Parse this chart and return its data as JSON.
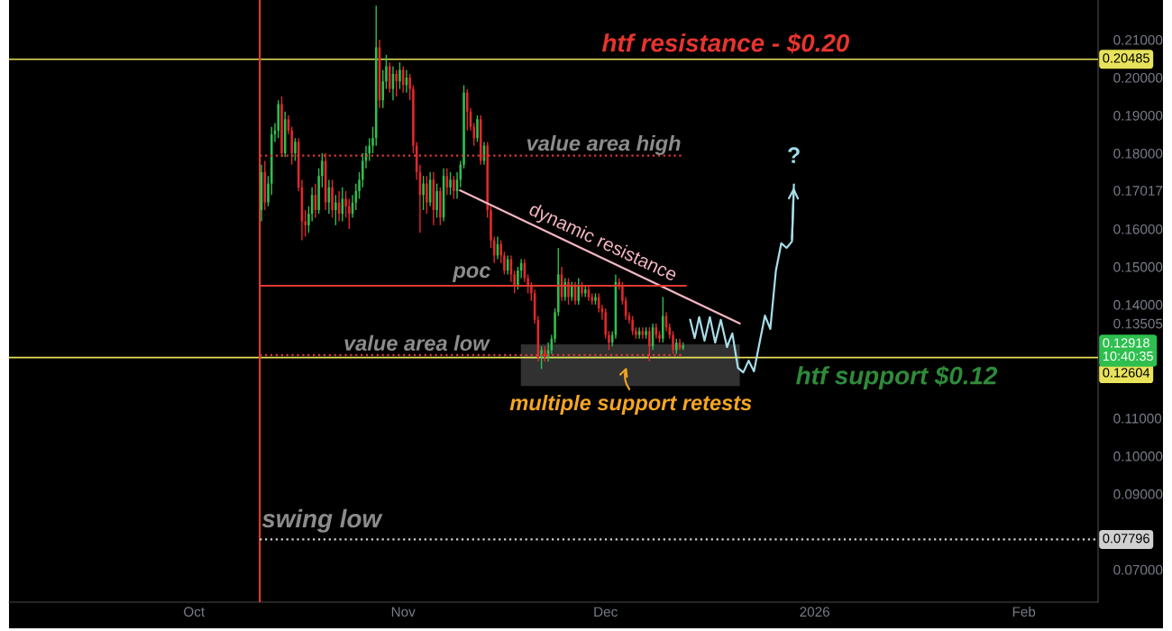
{
  "chart_data": {
    "type": "candlestick",
    "xlim": [
      "2025-09-03T14:00",
      "2026-02-12T00:00"
    ],
    "ylim": [
      0.0614,
      0.2205
    ],
    "xticks": [
      {
        "value": "2025-10-01",
        "label": "Oct"
      },
      {
        "value": "2025-11-01",
        "label": "Nov"
      },
      {
        "value": "2025-12-01",
        "label": "Dec"
      },
      {
        "value": "2026-01-01",
        "label": "2026"
      },
      {
        "value": "2026-02-01",
        "label": "Feb"
      }
    ],
    "yticks": [
      {
        "value": 0.07,
        "label": "0.07000"
      },
      {
        "value": 0.09,
        "label": "0.09000"
      },
      {
        "value": 0.1,
        "label": "0.10000"
      },
      {
        "value": 0.11,
        "label": "0.11000"
      },
      {
        "value": 0.13505,
        "label": "0.13505"
      },
      {
        "value": 0.14,
        "label": "0.14000"
      },
      {
        "value": 0.15,
        "label": "0.15000"
      },
      {
        "value": 0.16,
        "label": "0.16000"
      },
      {
        "value": 0.17017,
        "label": "0.17017"
      },
      {
        "value": 0.18,
        "label": "0.18000"
      },
      {
        "value": 0.19,
        "label": "0.19000"
      },
      {
        "value": 0.2,
        "label": "0.20000"
      },
      {
        "value": 0.21,
        "label": "0.21000"
      }
    ],
    "series": [
      {
        "colors": [
          "#2fbf4f",
          "#e3282c",
          "#2fbf4f",
          "#2fbf4f",
          "#2fbf4f",
          "#2fbf4f",
          "#e3282c",
          "#2fbf4f",
          "#e3282c",
          "#e3282c",
          "#2fbf4f",
          "#e3282c",
          "#e3282c",
          "#e3282c",
          "#2fbf4f",
          "#2fbf4f",
          "#e3282c",
          "#2fbf4f",
          "#2fbf4f",
          "#e3282c",
          "#2fbf4f",
          "#e3282c",
          "#2fbf4f",
          "#e3282c",
          "#2fbf4f",
          "#e3282c",
          "#e3282c",
          "#2fbf4f",
          "#2fbf4f",
          "#2fbf4f",
          "#2fbf4f",
          "#2fbf4f",
          "#2fbf4f",
          "#2fbf4f",
          "#2fbf4f",
          "#e3282c",
          "#2fbf4f",
          "#2fbf4f",
          "#e3282c",
          "#2fbf4f",
          "#e3282c",
          "#2fbf4f",
          "#e3282c",
          "#2fbf4f",
          "#e3282c",
          "#e3282c",
          "#e3282c",
          "#e3282c",
          "#2fbf4f",
          "#e3282c",
          "#2fbf4f",
          "#e3282c",
          "#2fbf4f",
          "#e3282c",
          "#2fbf4f",
          "#e3282c",
          "#2fbf4f",
          "#e3282c",
          "#2fbf4f",
          "#2fbf4f",
          "#2fbf4f",
          "#e3282c",
          "#e3282c",
          "#e3282c",
          "#2fbf4f",
          "#e3282c",
          "#2fbf4f",
          "#e3282c",
          "#e3282c",
          "#e3282c",
          "#2fbf4f",
          "#e3282c",
          "#e3282c",
          "#2fbf4f",
          "#e3282c",
          "#e3282c",
          "#2fbf4f",
          "#2fbf4f",
          "#e3282c",
          "#e3282c",
          "#e3282c",
          "#e3282c",
          "#e3282c",
          "#2fbf4f",
          "#e3282c",
          "#2fbf4f",
          "#2fbf4f",
          "#2fbf4f",
          "#2fbf4f",
          "#e3282c",
          "#2fbf4f",
          "#e3282c",
          "#2fbf4f",
          "#e3282c",
          "#2fbf4f",
          "#e3282c",
          "#2fbf4f",
          "#e3282c",
          "#e3282c",
          "#2fbf4f",
          "#e3282c",
          "#e3282c",
          "#e3282c",
          "#e3282c",
          "#2fbf4f",
          "#2fbf4f",
          "#e3282c",
          "#e3282c",
          "#e3282c",
          "#e3282c",
          "#e3282c",
          "#e3282c",
          "#2fbf4f",
          "#e3282c",
          "#2fbf4f",
          "#e3282c",
          "#2fbf4f",
          "#e3282c",
          "#e3282c",
          "#2fbf4f",
          "#e3282c",
          "#e3282c",
          "#e3282c",
          "#2fbf4f",
          "#e3282c",
          "#2fbf4f"
        ],
        "x": [
          "2025-10-11T00:00",
          "2025-10-11T12:00",
          "2025-10-12T00:00",
          "2025-10-12T12:00",
          "2025-10-13T00:00",
          "2025-10-13T12:00",
          "2025-10-14T00:00",
          "2025-10-14T12:00",
          "2025-10-15T00:00",
          "2025-10-15T12:00",
          "2025-10-16T00:00",
          "2025-10-16T12:00",
          "2025-10-17T00:00",
          "2025-10-17T12:00",
          "2025-10-18T00:00",
          "2025-10-18T12:00",
          "2025-10-19T00:00",
          "2025-10-19T12:00",
          "2025-10-20T00:00",
          "2025-10-20T12:00",
          "2025-10-21T00:00",
          "2025-10-21T12:00",
          "2025-10-22T00:00",
          "2025-10-22T12:00",
          "2025-10-23T00:00",
          "2025-10-23T12:00",
          "2025-10-24T00:00",
          "2025-10-24T12:00",
          "2025-10-25T00:00",
          "2025-10-25T12:00",
          "2025-10-26T00:00",
          "2025-10-26T12:00",
          "2025-10-27T00:00",
          "2025-10-27T12:00",
          "2025-10-28T00:00",
          "2025-10-28T12:00",
          "2025-10-29T00:00",
          "2025-10-29T12:00",
          "2025-10-30T00:00",
          "2025-10-30T12:00",
          "2025-10-31T00:00",
          "2025-10-31T12:00",
          "2025-11-01T00:00",
          "2025-11-01T12:00",
          "2025-11-02T00:00",
          "2025-11-02T12:00",
          "2025-11-03T00:00",
          "2025-11-03T12:00",
          "2025-11-04T00:00",
          "2025-11-04T12:00",
          "2025-11-05T00:00",
          "2025-11-05T12:00",
          "2025-11-06T00:00",
          "2025-11-06T12:00",
          "2025-11-07T00:00",
          "2025-11-07T12:00",
          "2025-11-08T00:00",
          "2025-11-08T12:00",
          "2025-11-09T00:00",
          "2025-11-09T12:00",
          "2025-11-10T00:00",
          "2025-11-10T12:00",
          "2025-11-11T00:00",
          "2025-11-11T12:00",
          "2025-11-12T00:00",
          "2025-11-12T12:00",
          "2025-11-13T00:00",
          "2025-11-13T12:00",
          "2025-11-14T00:00",
          "2025-11-14T12:00",
          "2025-11-15T00:00",
          "2025-11-15T12:00",
          "2025-11-16T00:00",
          "2025-11-16T12:00",
          "2025-11-17T00:00",
          "2025-11-17T12:00",
          "2025-11-18T00:00",
          "2025-11-18T12:00",
          "2025-11-19T00:00",
          "2025-11-19T12:00",
          "2025-11-20T00:00",
          "2025-11-20T12:00",
          "2025-11-21T00:00",
          "2025-11-21T12:00",
          "2025-11-22T00:00",
          "2025-11-22T12:00",
          "2025-11-23T00:00",
          "2025-11-23T12:00",
          "2025-11-24T00:00",
          "2025-11-24T12:00",
          "2025-11-25T00:00",
          "2025-11-25T12:00",
          "2025-11-26T00:00",
          "2025-11-26T12:00",
          "2025-11-27T00:00",
          "2025-11-27T12:00",
          "2025-11-28T00:00",
          "2025-11-28T12:00",
          "2025-11-29T00:00",
          "2025-11-29T12:00",
          "2025-11-30T00:00",
          "2025-11-30T12:00",
          "2025-12-01T00:00",
          "2025-12-01T12:00",
          "2025-12-02T00:00",
          "2025-12-02T12:00",
          "2025-12-03T00:00",
          "2025-12-03T12:00",
          "2025-12-04T00:00",
          "2025-12-04T12:00",
          "2025-12-05T00:00",
          "2025-12-05T12:00",
          "2025-12-06T00:00",
          "2025-12-06T12:00",
          "2025-12-07T00:00",
          "2025-12-07T12:00",
          "2025-12-08T00:00",
          "2025-12-08T12:00",
          "2025-12-09T00:00",
          "2025-12-09T12:00",
          "2025-12-10T00:00",
          "2025-12-10T12:00",
          "2025-12-11T00:00",
          "2025-12-11T12:00",
          "2025-12-12T00:00",
          "2025-12-12T12:00"
        ],
        "ohlc": [
          [
            0.165,
            0.177,
            0.162,
            0.175
          ],
          [
            0.175,
            0.178,
            0.165,
            0.167
          ],
          [
            0.167,
            0.174,
            0.166,
            0.172
          ],
          [
            0.172,
            0.187,
            0.169,
            0.185
          ],
          [
            0.185,
            0.188,
            0.183,
            0.186
          ],
          [
            0.186,
            0.194,
            0.184,
            0.193
          ],
          [
            0.193,
            0.195,
            0.179,
            0.18
          ],
          [
            0.18,
            0.191,
            0.179,
            0.189
          ],
          [
            0.189,
            0.19,
            0.185,
            0.186
          ],
          [
            0.186,
            0.187,
            0.177,
            0.18
          ],
          [
            0.18,
            0.184,
            0.178,
            0.183
          ],
          [
            0.183,
            0.184,
            0.17,
            0.171
          ],
          [
            0.171,
            0.173,
            0.157,
            0.162
          ],
          [
            0.162,
            0.165,
            0.158,
            0.161
          ],
          [
            0.161,
            0.166,
            0.159,
            0.164
          ],
          [
            0.164,
            0.171,
            0.162,
            0.169
          ],
          [
            0.169,
            0.172,
            0.163,
            0.165
          ],
          [
            0.165,
            0.176,
            0.164,
            0.174
          ],
          [
            0.174,
            0.18,
            0.171,
            0.178
          ],
          [
            0.178,
            0.18,
            0.165,
            0.167
          ],
          [
            0.167,
            0.173,
            0.164,
            0.171
          ],
          [
            0.171,
            0.173,
            0.163,
            0.165
          ],
          [
            0.165,
            0.169,
            0.161,
            0.167
          ],
          [
            0.167,
            0.17,
            0.162,
            0.164
          ],
          [
            0.164,
            0.171,
            0.162,
            0.168
          ],
          [
            0.168,
            0.17,
            0.163,
            0.166
          ],
          [
            0.166,
            0.168,
            0.16,
            0.164
          ],
          [
            0.164,
            0.169,
            0.163,
            0.167
          ],
          [
            0.167,
            0.172,
            0.165,
            0.17
          ],
          [
            0.17,
            0.175,
            0.168,
            0.173
          ],
          [
            0.173,
            0.18,
            0.171,
            0.178
          ],
          [
            0.178,
            0.182,
            0.176,
            0.18
          ],
          [
            0.18,
            0.184,
            0.178,
            0.182
          ],
          [
            0.182,
            0.187,
            0.18,
            0.184
          ],
          [
            0.184,
            0.219,
            0.182,
            0.208
          ],
          [
            0.208,
            0.21,
            0.192,
            0.194
          ],
          [
            0.194,
            0.202,
            0.192,
            0.199
          ],
          [
            0.199,
            0.206,
            0.197,
            0.203
          ],
          [
            0.203,
            0.204,
            0.196,
            0.197
          ],
          [
            0.197,
            0.203,
            0.194,
            0.201
          ],
          [
            0.201,
            0.202,
            0.195,
            0.199
          ],
          [
            0.199,
            0.204,
            0.197,
            0.202
          ],
          [
            0.202,
            0.203,
            0.196,
            0.198
          ],
          [
            0.198,
            0.202,
            0.196,
            0.2
          ],
          [
            0.2,
            0.201,
            0.194,
            0.197
          ],
          [
            0.197,
            0.198,
            0.18,
            0.182
          ],
          [
            0.182,
            0.183,
            0.173,
            0.175
          ],
          [
            0.175,
            0.177,
            0.159,
            0.169
          ],
          [
            0.169,
            0.174,
            0.165,
            0.172
          ],
          [
            0.172,
            0.174,
            0.164,
            0.167
          ],
          [
            0.167,
            0.175,
            0.166,
            0.173
          ],
          [
            0.173,
            0.175,
            0.161,
            0.165
          ],
          [
            0.165,
            0.172,
            0.163,
            0.17
          ],
          [
            0.17,
            0.171,
            0.161,
            0.163
          ],
          [
            0.163,
            0.176,
            0.162,
            0.174
          ],
          [
            0.174,
            0.176,
            0.169,
            0.171
          ],
          [
            0.171,
            0.175,
            0.169,
            0.173
          ],
          [
            0.173,
            0.174,
            0.168,
            0.17
          ],
          [
            0.17,
            0.175,
            0.168,
            0.173
          ],
          [
            0.173,
            0.178,
            0.171,
            0.177
          ],
          [
            0.177,
            0.198,
            0.176,
            0.196
          ],
          [
            0.196,
            0.197,
            0.186,
            0.191
          ],
          [
            0.191,
            0.192,
            0.186,
            0.187
          ],
          [
            0.187,
            0.188,
            0.182,
            0.184
          ],
          [
            0.184,
            0.19,
            0.183,
            0.189
          ],
          [
            0.189,
            0.19,
            0.177,
            0.178
          ],
          [
            0.178,
            0.183,
            0.177,
            0.182
          ],
          [
            0.182,
            0.183,
            0.163,
            0.165
          ],
          [
            0.165,
            0.166,
            0.155,
            0.157
          ],
          [
            0.157,
            0.158,
            0.151,
            0.153
          ],
          [
            0.153,
            0.158,
            0.152,
            0.156
          ],
          [
            0.156,
            0.157,
            0.151,
            0.153
          ],
          [
            0.153,
            0.154,
            0.148,
            0.149
          ],
          [
            0.149,
            0.153,
            0.148,
            0.152
          ],
          [
            0.152,
            0.153,
            0.146,
            0.148
          ],
          [
            0.148,
            0.149,
            0.143,
            0.145
          ],
          [
            0.145,
            0.15,
            0.144,
            0.149
          ],
          [
            0.149,
            0.152,
            0.147,
            0.151
          ],
          [
            0.151,
            0.152,
            0.146,
            0.147
          ],
          [
            0.147,
            0.148,
            0.143,
            0.145
          ],
          [
            0.145,
            0.146,
            0.141,
            0.143
          ],
          [
            0.143,
            0.144,
            0.135,
            0.136
          ],
          [
            0.136,
            0.137,
            0.125,
            0.126
          ],
          [
            0.126,
            0.129,
            0.123,
            0.128
          ],
          [
            0.128,
            0.129,
            0.125,
            0.126
          ],
          [
            0.126,
            0.13,
            0.125,
            0.128
          ],
          [
            0.128,
            0.132,
            0.127,
            0.131
          ],
          [
            0.131,
            0.139,
            0.13,
            0.138
          ],
          [
            0.138,
            0.155,
            0.137,
            0.148
          ],
          [
            0.148,
            0.15,
            0.141,
            0.142
          ],
          [
            0.142,
            0.147,
            0.141,
            0.146
          ],
          [
            0.146,
            0.147,
            0.14,
            0.142
          ],
          [
            0.142,
            0.146,
            0.141,
            0.145
          ],
          [
            0.145,
            0.146,
            0.14,
            0.141
          ],
          [
            0.141,
            0.147,
            0.14,
            0.145
          ],
          [
            0.145,
            0.146,
            0.142,
            0.143
          ],
          [
            0.143,
            0.145,
            0.142,
            0.144
          ],
          [
            0.144,
            0.145,
            0.141,
            0.142
          ],
          [
            0.142,
            0.143,
            0.14,
            0.141
          ],
          [
            0.141,
            0.143,
            0.14,
            0.142
          ],
          [
            0.142,
            0.143,
            0.138,
            0.139
          ],
          [
            0.139,
            0.14,
            0.136,
            0.138
          ],
          [
            0.138,
            0.139,
            0.131,
            0.132
          ],
          [
            0.132,
            0.133,
            0.128,
            0.13
          ],
          [
            0.13,
            0.133,
            0.129,
            0.132
          ],
          [
            0.132,
            0.148,
            0.131,
            0.146
          ],
          [
            0.146,
            0.147,
            0.144,
            0.145
          ],
          [
            0.145,
            0.146,
            0.14,
            0.141
          ],
          [
            0.141,
            0.142,
            0.136,
            0.137
          ],
          [
            0.137,
            0.138,
            0.135,
            0.136
          ],
          [
            0.136,
            0.137,
            0.132,
            0.133
          ],
          [
            0.133,
            0.134,
            0.131,
            0.132
          ],
          [
            0.132,
            0.134,
            0.131,
            0.133
          ],
          [
            0.133,
            0.134,
            0.131,
            0.132
          ],
          [
            0.132,
            0.134,
            0.131,
            0.133
          ],
          [
            0.133,
            0.134,
            0.125,
            0.129
          ],
          [
            0.129,
            0.135,
            0.128,
            0.134
          ],
          [
            0.134,
            0.135,
            0.131,
            0.132
          ],
          [
            0.132,
            0.133,
            0.13,
            0.131
          ],
          [
            0.131,
            0.142,
            0.13,
            0.137
          ],
          [
            0.137,
            0.138,
            0.133,
            0.134
          ],
          [
            0.134,
            0.135,
            0.131,
            0.132
          ],
          [
            0.132,
            0.133,
            0.127,
            0.128
          ],
          [
            0.128,
            0.131,
            0.127,
            0.13
          ],
          [
            0.13,
            0.131,
            0.128,
            0.1285
          ],
          [
            0.1285,
            0.13,
            0.128,
            0.12918
          ]
        ]
      },
      {
        "type": "line",
        "color": "#f4b6c2",
        "line_style": "solid",
        "x": [
          "2025-11-09T11:00",
          "2025-12-20T21:00"
        ],
        "values": [
          0.17017,
          0.13505
        ]
      },
      {
        "type": "line",
        "color": "#d93a32",
        "line_style": "dotted",
        "x": [
          "2025-10-10T18:00",
          "2025-12-12T05:00"
        ],
        "values": [
          0.1794,
          0.1794
        ]
      },
      {
        "type": "line",
        "color": "#e03a30",
        "line_style": "solid",
        "x": [
          "2025-10-10T18:00",
          "2025-12-12T21:00"
        ],
        "values": [
          0.145,
          0.145
        ]
      },
      {
        "type": "line",
        "color": "#d93a32",
        "line_style": "dotted",
        "x": [
          "2025-10-10T18:00",
          "2025-12-12T05:00"
        ],
        "values": [
          0.1267,
          0.1267
        ]
      },
      {
        "type": "line",
        "color": "#d0d0d0",
        "line_style": "dotted",
        "x": [
          "2025-10-10T18:00",
          "2026-02-12T00:00"
        ],
        "values": [
          0.07796,
          0.07796
        ],
        "value_labels": [
          null,
          "0.07796"
        ]
      },
      {
        "type": "line",
        "color": "#a8dde8",
        "line_style": "solid",
        "x": [
          "2025-12-13T13:00",
          "2025-12-14T05:00",
          "2025-12-14T21:00",
          "2025-12-15T16:00",
          "2025-12-16T11:00",
          "2025-12-17T06:00",
          "2025-12-18T02:00",
          "2025-12-19T00:00",
          "2025-12-19T19:00",
          "2025-12-20T15:00",
          "2025-12-21T10:00",
          "2025-12-22T05:00",
          "2025-12-23T00:00",
          "2025-12-23T20:00",
          "2025-12-24T15:00",
          "2025-12-25T10:00",
          "2025-12-26T06:00",
          "2025-12-27T01:00",
          "2025-12-27T20:00",
          "2025-12-28T15:00",
          "2025-12-28T22:00"
        ],
        "values": [
          0.136,
          0.1312,
          0.1367,
          0.1305,
          0.1367,
          0.13,
          0.136,
          0.1288,
          0.1324,
          0.1233,
          0.1221,
          0.1252,
          0.1224,
          0.13,
          0.1371,
          0.1336,
          0.149,
          0.1562,
          0.155,
          0.1567,
          0.1717
        ]
      }
    ],
    "ref_lines": [
      {
        "axis": "y",
        "value": 0.20485,
        "label": "0.20485",
        "color": "#e8e35a",
        "line_style": "solid"
      },
      {
        "axis": "y",
        "value": 0.12604,
        "label": "0.12604",
        "color": "#e8e35a",
        "line_style": "solid"
      },
      {
        "axis": "x",
        "value": "2025-10-10T18:00",
        "label": null,
        "color": "#d93a32",
        "line_style": "solid"
      }
    ],
    "annotations": [
      "htf resistance - $0.20",
      "value area high",
      "poc",
      "value area low",
      "dynamic resistance",
      "multiple support retests",
      "htf support $0.12",
      "swing low",
      {
        "text": "?",
        "x": "2025-12-28T22:00",
        "y": 0.1717
      },
      "0.12918\n10:40:35"
    ]
  }
}
